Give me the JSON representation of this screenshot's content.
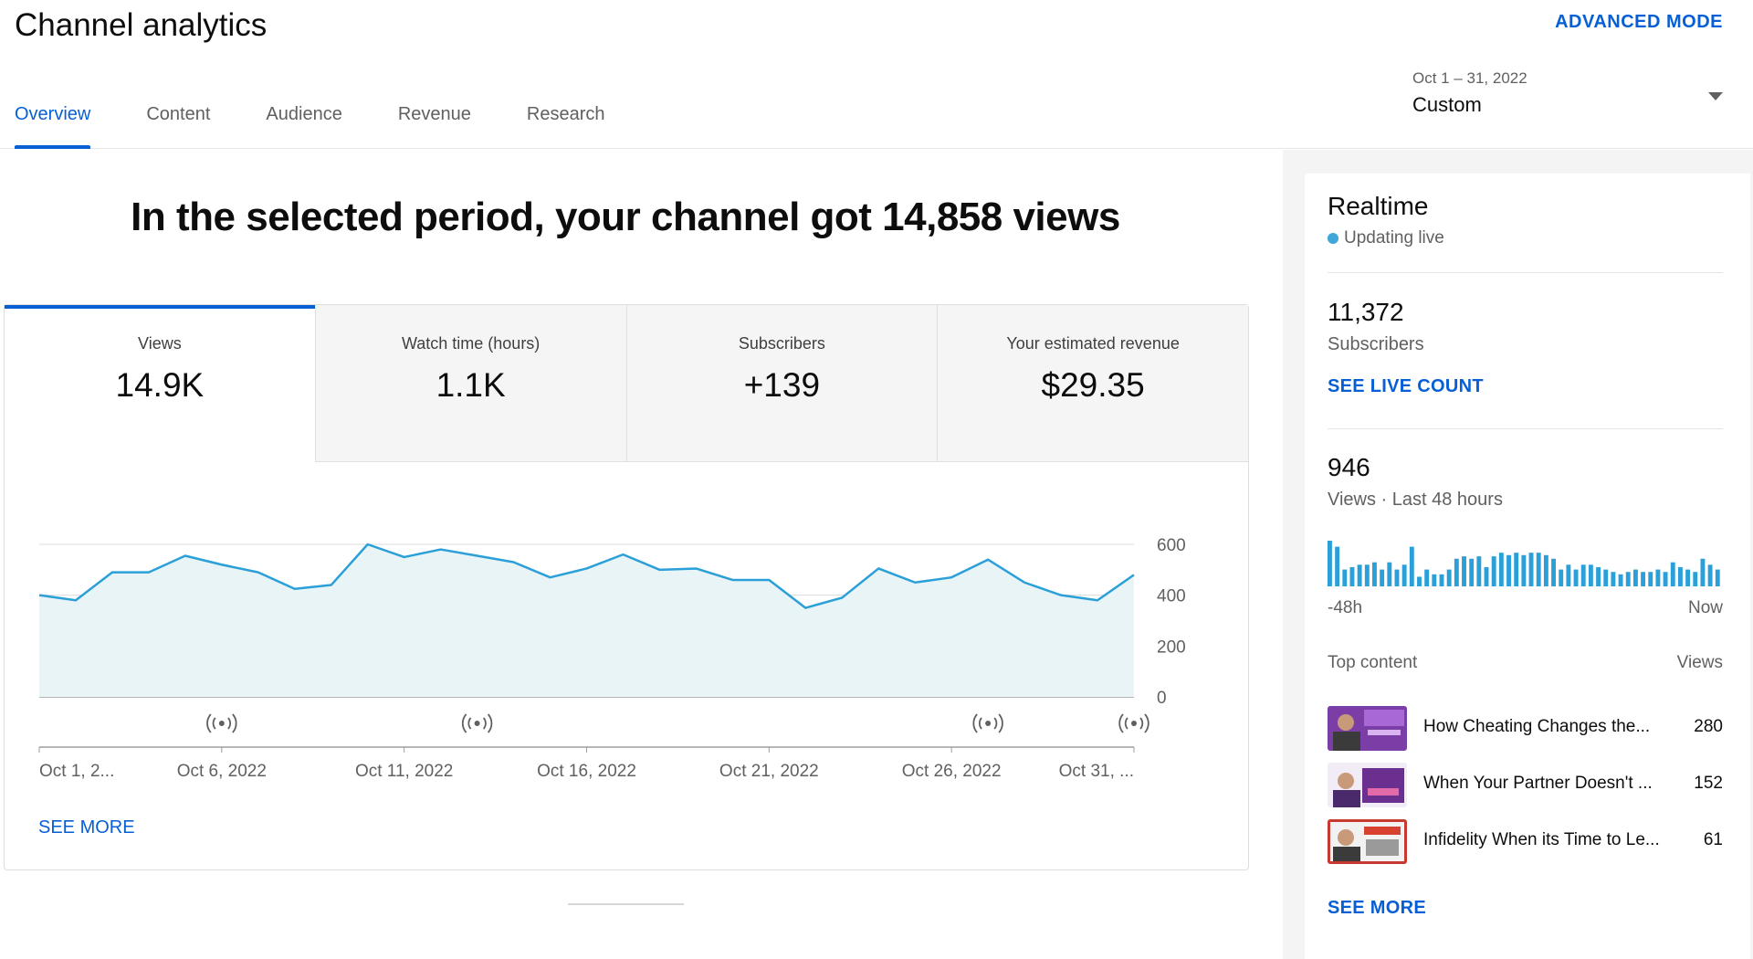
{
  "header": {
    "title": "Channel analytics",
    "advanced_mode": "ADVANCED MODE",
    "tabs": [
      {
        "label": "Overview",
        "active": true
      },
      {
        "label": "Content",
        "active": false
      },
      {
        "label": "Audience",
        "active": false
      },
      {
        "label": "Revenue",
        "active": false
      },
      {
        "label": "Research",
        "active": false
      }
    ],
    "date_range": "Oct 1 – 31, 2022",
    "date_preset": "Custom"
  },
  "main": {
    "headline": "In the selected period, your channel got 14,858 views",
    "metrics": [
      {
        "label": "Views",
        "value": "14.9K",
        "active": true
      },
      {
        "label": "Watch time (hours)",
        "value": "1.1K",
        "active": false
      },
      {
        "label": "Subscribers",
        "value": "+139",
        "active": false
      },
      {
        "label": "Your estimated revenue",
        "value": "$29.35",
        "active": false
      }
    ],
    "see_more": "SEE MORE"
  },
  "chart_data": {
    "type": "area",
    "x": [
      "Oct 1",
      "Oct 2",
      "Oct 3",
      "Oct 4",
      "Oct 5",
      "Oct 6",
      "Oct 7",
      "Oct 8",
      "Oct 9",
      "Oct 10",
      "Oct 11",
      "Oct 12",
      "Oct 13",
      "Oct 14",
      "Oct 15",
      "Oct 16",
      "Oct 17",
      "Oct 18",
      "Oct 19",
      "Oct 20",
      "Oct 21",
      "Oct 22",
      "Oct 23",
      "Oct 24",
      "Oct 25",
      "Oct 26",
      "Oct 27",
      "Oct 28",
      "Oct 29",
      "Oct 30",
      "Oct 31"
    ],
    "values": [
      400,
      380,
      490,
      490,
      555,
      520,
      490,
      425,
      440,
      600,
      550,
      580,
      555,
      530,
      470,
      505,
      560,
      500,
      505,
      460,
      460,
      350,
      390,
      505,
      450,
      470,
      540,
      450,
      400,
      380,
      480
    ],
    "ylim": [
      0,
      600
    ],
    "yticks": [
      "600",
      "400",
      "200",
      "0"
    ],
    "ytick_values": [
      600,
      400,
      200,
      0
    ],
    "xtick_labels": [
      "Oct 1, 2...",
      "Oct 6, 2022",
      "Oct 11, 2022",
      "Oct 16, 2022",
      "Oct 21, 2022",
      "Oct 26, 2022",
      "Oct 31, ..."
    ],
    "xtick_indices": [
      0,
      5,
      10,
      15,
      20,
      25,
      30
    ],
    "event_marker_indices": [
      5,
      12,
      26,
      30
    ],
    "event_marker_icon": "live-broadcast-icon",
    "grid": true,
    "line_color": "#2ba0d8",
    "fill_color": "#e9f4f7"
  },
  "realtime": {
    "title": "Realtime",
    "status": "Updating live",
    "subscribers_value": "11,372",
    "subscribers_label": "Subscribers",
    "see_live_count": "SEE LIVE COUNT",
    "views_value": "946",
    "views_label": "Views · Last 48 hours",
    "bars": [
      38,
      33,
      14,
      16,
      18,
      18,
      20,
      14,
      20,
      14,
      18,
      33,
      8,
      14,
      10,
      10,
      14,
      23,
      25,
      23,
      25,
      16,
      25,
      28,
      26,
      28,
      26,
      28,
      28,
      26,
      23,
      14,
      18,
      14,
      18,
      18,
      16,
      14,
      12,
      10,
      12,
      14,
      12,
      12,
      14,
      12,
      20,
      16,
      14,
      12,
      23,
      18,
      14
    ],
    "axis_start": "-48h",
    "axis_end": "Now",
    "top_content_label": "Top content",
    "top_content_views_label": "Views",
    "top_content": [
      {
        "title": "How Cheating Changes the...",
        "views": "280",
        "thumb_color": "#7b3ea6"
      },
      {
        "title": "When Your Partner Doesn't ...",
        "views": "152",
        "thumb_color": "#6a2f8f"
      },
      {
        "title": "Infidelity When its Time to Le...",
        "views": "61",
        "thumb_color": "#c73a2f"
      }
    ],
    "see_more": "SEE MORE"
  }
}
